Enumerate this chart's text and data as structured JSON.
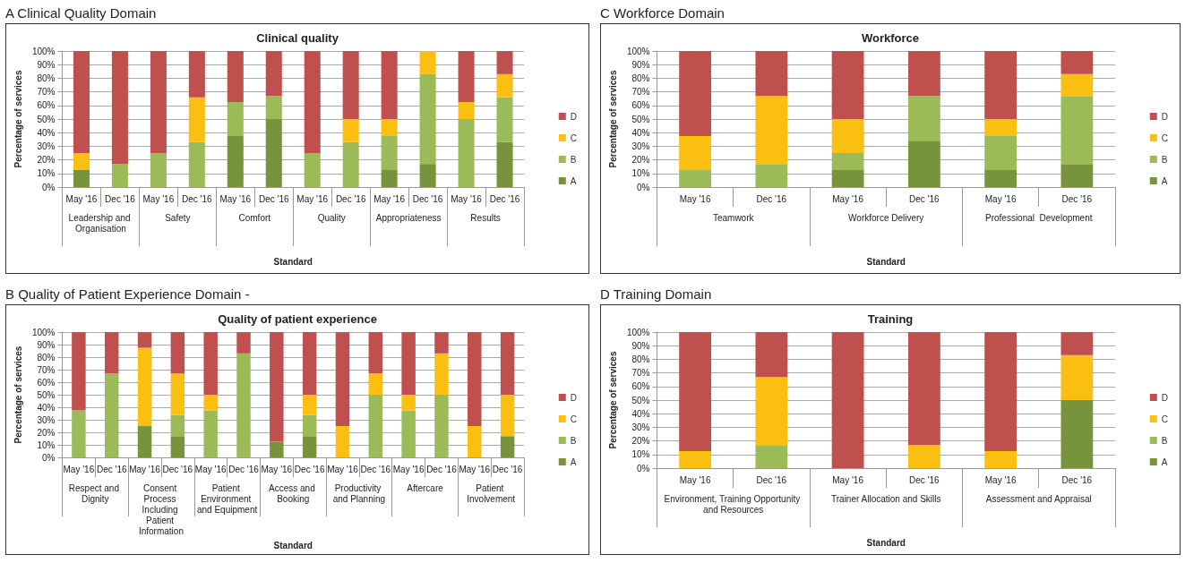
{
  "chart_data": [
    {
      "type": "bar",
      "stacked": true,
      "title": "A  Clinical Quality Domain",
      "subtitle": "Clinical quality",
      "xlabel": "Standard",
      "ylabel": "Percentage of services",
      "categories": [
        "May '16",
        "Dec '16",
        "May '16",
        "Dec '16",
        "May '16",
        "Dec '16",
        "May '16",
        "Dec '16",
        "May '16",
        "Dec '16",
        "May '16",
        "Dec '16"
      ],
      "annotations": [
        "Leadership and Organisation",
        "Safety",
        "Comfort",
        "Quality",
        "Appropriateness",
        "Results"
      ],
      "series": [
        {
          "name": "A",
          "color": "#77933c",
          "values": [
            12.5,
            0,
            0,
            0,
            37.5,
            50,
            0,
            0,
            12.5,
            17,
            0,
            33
          ]
        },
        {
          "name": "B",
          "color": "#9bbb59",
          "values": [
            0,
            17,
            25,
            33,
            25,
            17,
            25,
            33,
            25,
            66,
            50,
            33
          ]
        },
        {
          "name": "C",
          "color": "#fbbf11",
          "values": [
            12.5,
            0,
            0,
            33,
            0,
            0,
            0,
            17,
            12.5,
            17,
            12.5,
            17
          ]
        },
        {
          "name": "D",
          "color": "#c0504d",
          "values": [
            75,
            83,
            75,
            34,
            37.5,
            33,
            75,
            50,
            50,
            0,
            37.5,
            17
          ]
        }
      ],
      "ylim": [
        0,
        100
      ],
      "yticks": [
        {
          "value": 0,
          "label": "0%"
        },
        {
          "value": 10,
          "label": "10%"
        },
        {
          "value": 20,
          "label": "20%"
        },
        {
          "value": 30,
          "label": "30%"
        },
        {
          "value": 40,
          "label": "40%"
        },
        {
          "value": 50,
          "label": "50%"
        },
        {
          "value": 60,
          "label": "60%"
        },
        {
          "value": 70,
          "label": "70%"
        },
        {
          "value": 80,
          "label": "80%"
        },
        {
          "value": 90,
          "label": "90%"
        },
        {
          "value": 100,
          "label": "100%"
        }
      ],
      "grid": "y",
      "legend": "right"
    },
    {
      "type": "bar",
      "stacked": true,
      "title": "C  Workforce Domain",
      "subtitle": "Workforce",
      "xlabel": "Standard",
      "ylabel": "Percentage of services",
      "categories": [
        "May '16",
        "Dec '16",
        "May '16",
        "Dec '16",
        "May '16",
        "Dec '16"
      ],
      "annotations": [
        "Teamwork",
        "Workforce Delivery",
        "Professional  Development"
      ],
      "series": [
        {
          "name": "A",
          "color": "#77933c",
          "values": [
            0,
            0,
            12.5,
            34,
            12.5,
            17
          ]
        },
        {
          "name": "B",
          "color": "#9bbb59",
          "values": [
            12.5,
            17,
            12.5,
            33,
            25,
            50
          ]
        },
        {
          "name": "C",
          "color": "#fbbf11",
          "values": [
            25,
            50,
            25,
            0,
            12.5,
            16
          ]
        },
        {
          "name": "D",
          "color": "#c0504d",
          "values": [
            62.5,
            33,
            50,
            33,
            50,
            17
          ]
        }
      ],
      "ylim": [
        0,
        100
      ],
      "yticks": [
        {
          "value": 0,
          "label": "0%"
        },
        {
          "value": 10,
          "label": "10%"
        },
        {
          "value": 20,
          "label": "20%"
        },
        {
          "value": 30,
          "label": "30%"
        },
        {
          "value": 40,
          "label": "40%"
        },
        {
          "value": 50,
          "label": "50%"
        },
        {
          "value": 60,
          "label": "60%"
        },
        {
          "value": 70,
          "label": "70%"
        },
        {
          "value": 80,
          "label": "80%"
        },
        {
          "value": 90,
          "label": "90%"
        },
        {
          "value": 100,
          "label": "100%"
        }
      ],
      "grid": "y",
      "legend": "right"
    },
    {
      "type": "bar",
      "stacked": true,
      "title": "B  Quality of Patient Experience Domain -",
      "subtitle": "Quality of patient experience",
      "xlabel": "Standard",
      "ylabel": "Percentage of services",
      "categories": [
        "May '16",
        "Dec '16",
        "May '16",
        "Dec '16",
        "May '16",
        "Dec '16",
        "May '16",
        "Dec '16",
        "May '16",
        "Dec '16",
        "May '16",
        "Dec '16",
        "May '16",
        "Dec '16"
      ],
      "annotations": [
        "Respect and Dignity",
        "Consent Process Including Patient Information",
        "Patient Environment and Equipment",
        "Access and Booking",
        "Productivity and Planning",
        "Aftercare",
        "Patient Involvement"
      ],
      "series": [
        {
          "name": "A",
          "color": "#77933c",
          "values": [
            0,
            0,
            25,
            17,
            0,
            0,
            12.5,
            17,
            0,
            0,
            0,
            0,
            0,
            17
          ]
        },
        {
          "name": "B",
          "color": "#9bbb59",
          "values": [
            37.5,
            67,
            0,
            17,
            37.5,
            83,
            0,
            17,
            0,
            50,
            37.5,
            50,
            0,
            0
          ]
        },
        {
          "name": "C",
          "color": "#fbbf11",
          "values": [
            0,
            0,
            62.5,
            33,
            12.5,
            0,
            0,
            16,
            25,
            17,
            12.5,
            33,
            25,
            33
          ]
        },
        {
          "name": "D",
          "color": "#c0504d",
          "values": [
            62.5,
            33,
            12.5,
            33,
            50,
            17,
            87.5,
            50,
            75,
            33,
            50,
            17,
            75,
            50
          ]
        }
      ],
      "ylim": [
        0,
        100
      ],
      "yticks": [
        {
          "value": 0,
          "label": "0%"
        },
        {
          "value": 10,
          "label": "10%"
        },
        {
          "value": 20,
          "label": "20%"
        },
        {
          "value": 30,
          "label": "30%"
        },
        {
          "value": 40,
          "label": "40%"
        },
        {
          "value": 50,
          "label": "50%"
        },
        {
          "value": 60,
          "label": "60%"
        },
        {
          "value": 70,
          "label": "70%"
        },
        {
          "value": 80,
          "label": "80%"
        },
        {
          "value": 90,
          "label": "90%"
        },
        {
          "value": 100,
          "label": "100%"
        }
      ],
      "grid": "y",
      "legend": "right"
    },
    {
      "type": "bar",
      "stacked": true,
      "title": "D  Training Domain",
      "subtitle": "Training",
      "xlabel": "Standard",
      "ylabel": "Percentage of services",
      "categories": [
        "May '16",
        "Dec '16",
        "May '16",
        "Dec '16",
        "May '16",
        "Dec '16"
      ],
      "annotations": [
        "Environment, Training Opportunity and Resources",
        "Trainer Allocation and Skills",
        "Assessment and Appraisal"
      ],
      "series": [
        {
          "name": "A",
          "color": "#77933c",
          "values": [
            0,
            0,
            0,
            0,
            0,
            50
          ]
        },
        {
          "name": "B",
          "color": "#9bbb59",
          "values": [
            0,
            17,
            0,
            0,
            0,
            0
          ]
        },
        {
          "name": "C",
          "color": "#fbbf11",
          "values": [
            12.5,
            50,
            0,
            17,
            12.5,
            33
          ]
        },
        {
          "name": "D",
          "color": "#c0504d",
          "values": [
            87.5,
            33,
            100,
            83,
            87.5,
            17
          ]
        }
      ],
      "ylim": [
        0,
        100
      ],
      "yticks": [
        {
          "value": 0,
          "label": "0%"
        },
        {
          "value": 10,
          "label": "10%"
        },
        {
          "value": 20,
          "label": "20%"
        },
        {
          "value": 30,
          "label": "30%"
        },
        {
          "value": 40,
          "label": "40%"
        },
        {
          "value": 50,
          "label": "50%"
        },
        {
          "value": 60,
          "label": "60%"
        },
        {
          "value": 70,
          "label": "70%"
        },
        {
          "value": 80,
          "label": "80%"
        },
        {
          "value": 90,
          "label": "90%"
        },
        {
          "value": 100,
          "label": "100%"
        }
      ],
      "grid": "y",
      "legend": "right"
    }
  ]
}
